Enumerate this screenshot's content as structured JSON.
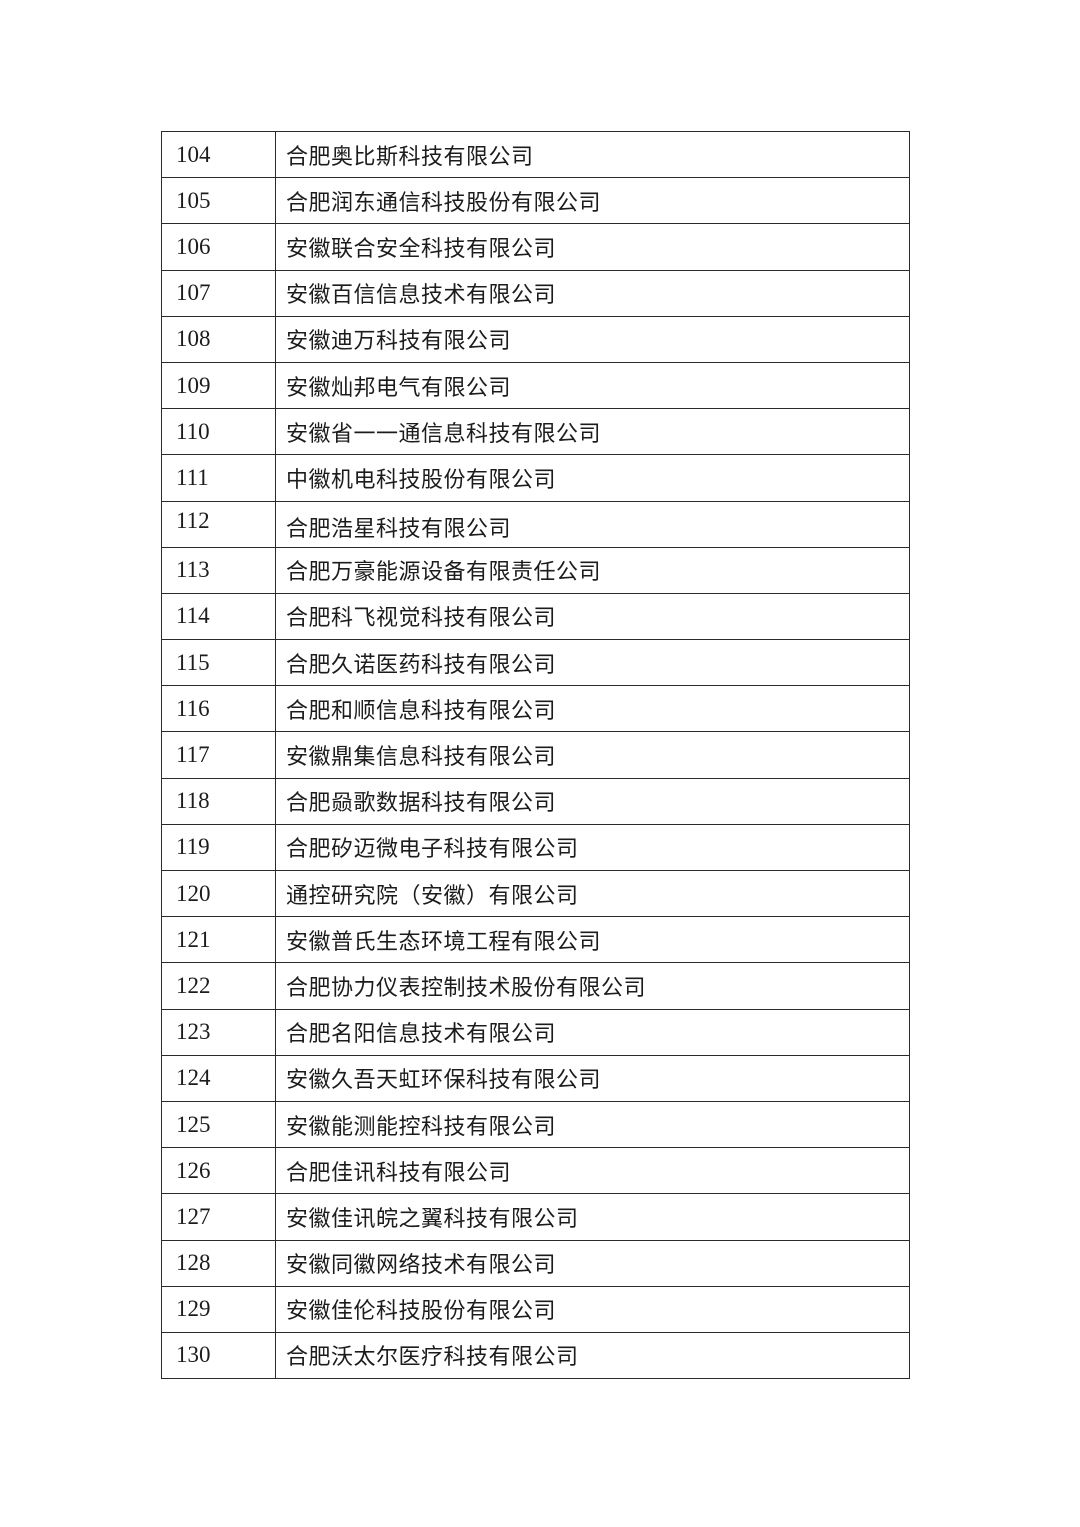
{
  "page": {
    "background_color": "#ffffff",
    "text_color": "#1c1c1c",
    "border_color": "#2b2b2b"
  },
  "table": {
    "columns": [
      "index",
      "company_name"
    ],
    "rows": [
      {
        "num": "104",
        "name": "合肥奥比斯科技有限公司"
      },
      {
        "num": "105",
        "name": "合肥润东通信科技股份有限公司"
      },
      {
        "num": "106",
        "name": "安徽联合安全科技有限公司"
      },
      {
        "num": "107",
        "name": "安徽百信信息技术有限公司"
      },
      {
        "num": "108",
        "name": "安徽迪万科技有限公司"
      },
      {
        "num": "109",
        "name": "安徽灿邦电气有限公司"
      },
      {
        "num": "110",
        "name": "安徽省一一通信息科技有限公司"
      },
      {
        "num": "111",
        "name": "中徽机电科技股份有限公司"
      },
      {
        "num": "112",
        "name": "合肥浩星科技有限公司"
      },
      {
        "num": "113",
        "name": "合肥万豪能源设备有限责任公司"
      },
      {
        "num": "114",
        "name": "合肥科飞视觉科技有限公司"
      },
      {
        "num": "115",
        "name": "合肥久诺医药科技有限公司"
      },
      {
        "num": "116",
        "name": "合肥和顺信息科技有限公司"
      },
      {
        "num": "117",
        "name": "安徽鼎集信息科技有限公司"
      },
      {
        "num": "118",
        "name": "合肥赑歌数据科技有限公司"
      },
      {
        "num": "119",
        "name": "合肥矽迈微电子科技有限公司"
      },
      {
        "num": "120",
        "name": "通控研究院（安徽）有限公司"
      },
      {
        "num": "121",
        "name": "安徽普氏生态环境工程有限公司"
      },
      {
        "num": "122",
        "name": "合肥协力仪表控制技术股份有限公司"
      },
      {
        "num": "123",
        "name": "合肥名阳信息技术有限公司"
      },
      {
        "num": "124",
        "name": "安徽久吾天虹环保科技有限公司"
      },
      {
        "num": "125",
        "name": "安徽能测能控科技有限公司"
      },
      {
        "num": "126",
        "name": "合肥佳讯科技有限公司"
      },
      {
        "num": "127",
        "name": "安徽佳讯皖之翼科技有限公司"
      },
      {
        "num": "128",
        "name": "安徽同徽网络技术有限公司"
      },
      {
        "num": "129",
        "name": "安徽佳伦科技股份有限公司"
      },
      {
        "num": "130",
        "name": "合肥沃太尔医疗科技有限公司"
      }
    ]
  }
}
